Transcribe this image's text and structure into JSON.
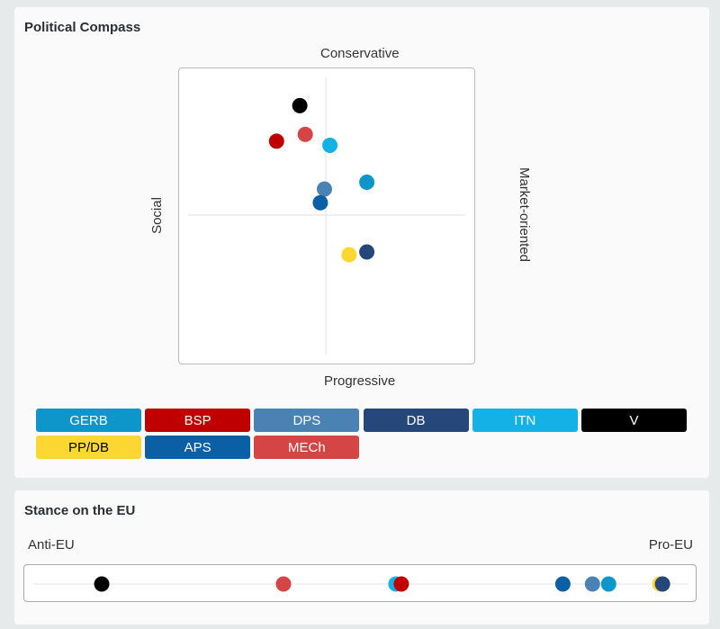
{
  "compass": {
    "title": "Political Compass",
    "top_label": "Conservative",
    "bottom_label": "Progressive",
    "left_label": "Social",
    "right_label": "Market-oriented"
  },
  "eu": {
    "title": "Stance on the EU",
    "left_label": "Anti-EU",
    "right_label": "Pro-EU"
  },
  "parties": [
    {
      "name": "GERB",
      "color": "#0e95c9",
      "text_color": "#ffffff"
    },
    {
      "name": "BSP",
      "color": "#c00000",
      "text_color": "#ffffff"
    },
    {
      "name": "DPS",
      "color": "#4a82b3",
      "text_color": "#ffffff"
    },
    {
      "name": "DB",
      "color": "#26477a",
      "text_color": "#ffffff"
    },
    {
      "name": "ITN",
      "color": "#14b1e7",
      "text_color": "#ffffff"
    },
    {
      "name": "V",
      "color": "#000000",
      "text_color": "#ffffff"
    },
    {
      "name": "PP/DB",
      "color": "#fcd731",
      "text_color": "#000000"
    },
    {
      "name": "APS",
      "color": "#0b5fa5",
      "text_color": "#ffffff"
    },
    {
      "name": "MECh",
      "color": "#d64545",
      "text_color": "#ffffff"
    }
  ],
  "chart_data": [
    {
      "type": "scatter",
      "title": "Political Compass",
      "xlabel_left": "Social",
      "xlabel_right": "Market-oriented",
      "ylabel_top": "Conservative",
      "ylabel_bottom": "Progressive",
      "xlim": [
        -1,
        1
      ],
      "ylim": [
        -1,
        1
      ],
      "points": [
        {
          "party": "GERB",
          "x": 0.3,
          "y": 0.24
        },
        {
          "party": "BSP",
          "x": -0.36,
          "y": 0.54
        },
        {
          "party": "DPS",
          "x": -0.01,
          "y": 0.19
        },
        {
          "party": "DB",
          "x": 0.3,
          "y": -0.27
        },
        {
          "party": "ITN",
          "x": 0.03,
          "y": 0.51
        },
        {
          "party": "V",
          "x": -0.19,
          "y": 0.8
        },
        {
          "party": "PP/DB",
          "x": 0.17,
          "y": -0.29
        },
        {
          "party": "APS",
          "x": -0.04,
          "y": 0.09
        },
        {
          "party": "MECh",
          "x": -0.15,
          "y": 0.59
        }
      ]
    },
    {
      "type": "scatter",
      "title": "Stance on the EU",
      "xlabel_left": "Anti-EU",
      "xlabel_right": "Pro-EU",
      "xlim": [
        0,
        1
      ],
      "points": [
        {
          "party": "V",
          "x": 0.115
        },
        {
          "party": "MECh",
          "x": 0.385
        },
        {
          "party": "ITN",
          "x": 0.552
        },
        {
          "party": "BSP",
          "x": 0.56
        },
        {
          "party": "APS",
          "x": 0.8
        },
        {
          "party": "DPS",
          "x": 0.844
        },
        {
          "party": "GERB",
          "x": 0.868
        },
        {
          "party": "PP/DB",
          "x": 0.944
        },
        {
          "party": "DB",
          "x": 0.948
        }
      ]
    }
  ]
}
